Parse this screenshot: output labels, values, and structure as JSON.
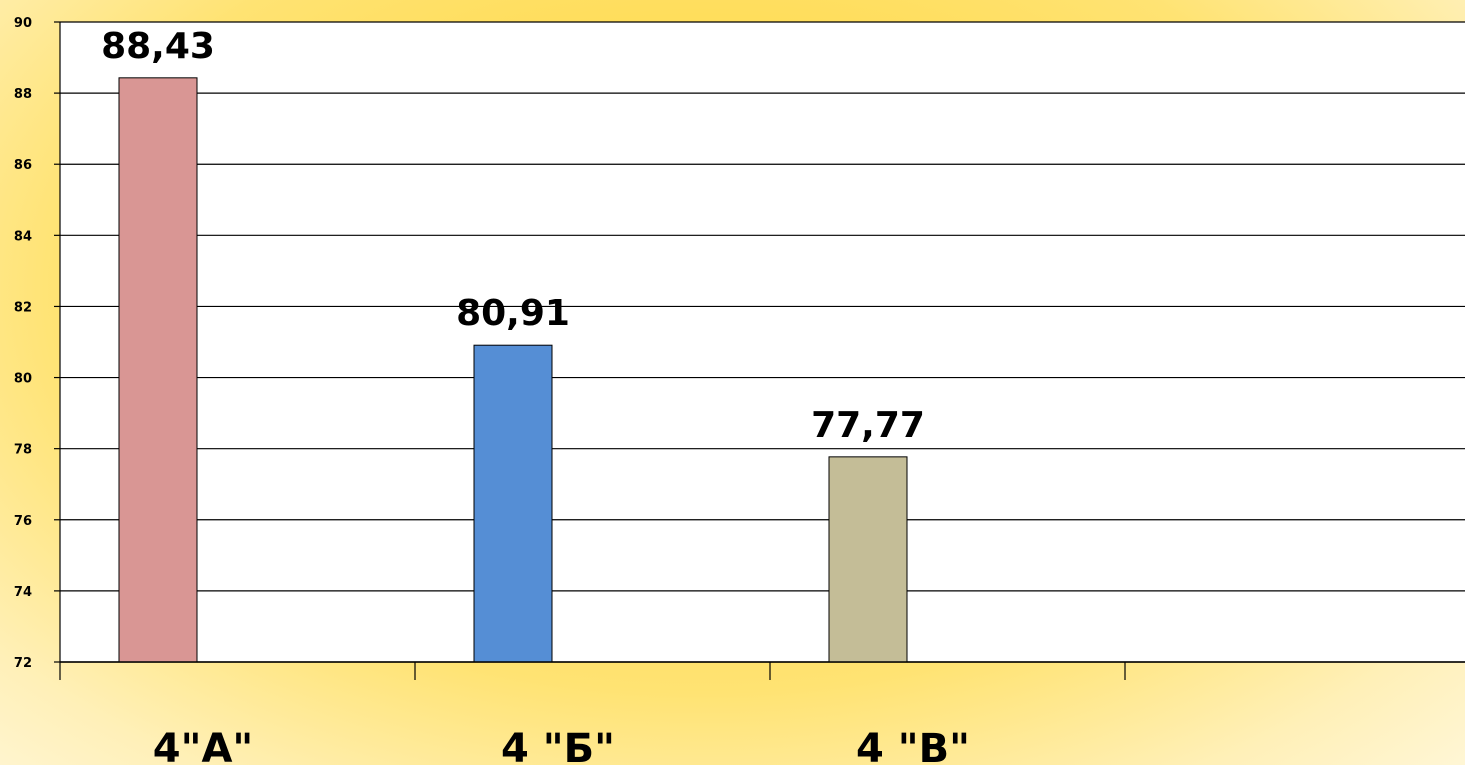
{
  "chart_data": {
    "type": "bar",
    "categories": [
      "4\"А\"",
      "4 \"Б\"",
      "4 \"В\""
    ],
    "values": [
      88.43,
      80.91,
      77.77
    ],
    "value_labels": [
      "88,43",
      "80,91",
      "77,77"
    ],
    "ylim": [
      72,
      90
    ],
    "yticks": [
      72,
      74,
      76,
      78,
      80,
      82,
      84,
      86,
      88,
      90
    ],
    "title": "",
    "xlabel": "",
    "ylabel": "",
    "grid": true,
    "legend": "none",
    "bar_colors": [
      "#d99694",
      "#558ed5",
      "#c4bd97"
    ]
  }
}
